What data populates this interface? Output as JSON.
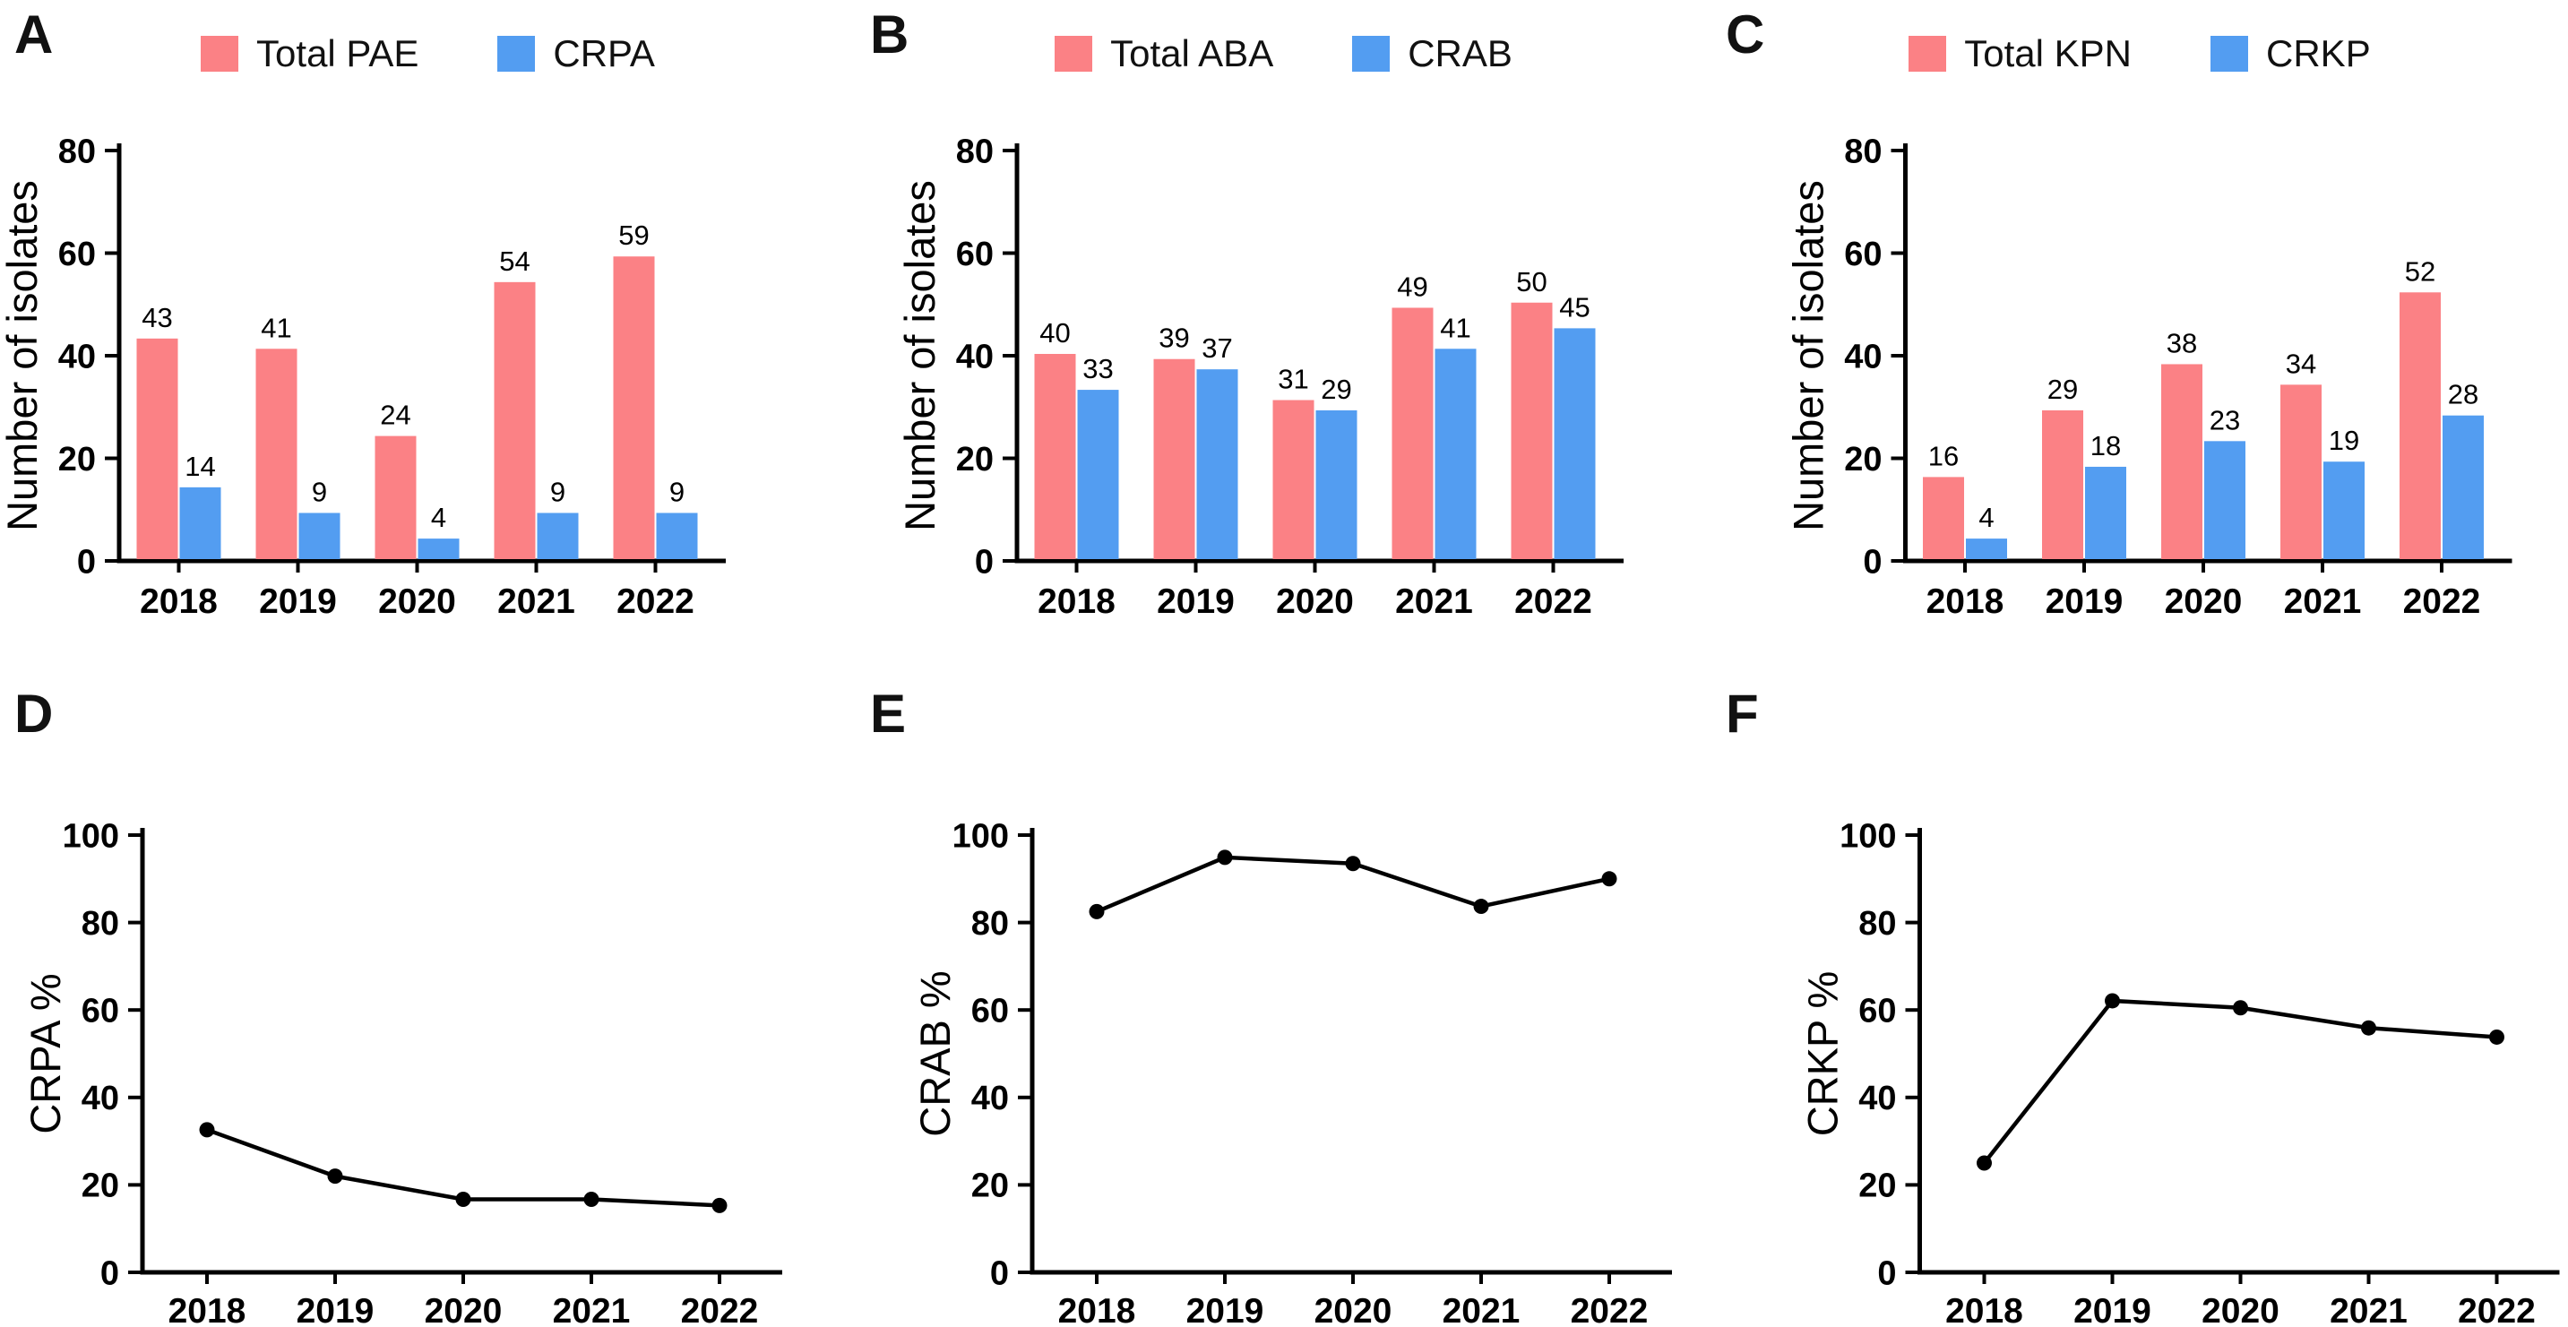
{
  "figure": {
    "background": "#ffffff",
    "axis_color": "#000000",
    "series_colors": {
      "total": "#FB8185",
      "resistant": "#539DF1",
      "line": "#000000"
    },
    "years": [
      "2018",
      "2019",
      "2020",
      "2021",
      "2022"
    ]
  },
  "chart_data": [
    {
      "panel": "A",
      "type": "bar",
      "categories": [
        "2018",
        "2019",
        "2020",
        "2021",
        "2022"
      ],
      "series": [
        {
          "name": "Total PAE",
          "color": "#FB8185",
          "values": [
            43,
            41,
            24,
            54,
            59
          ]
        },
        {
          "name": "CRPA",
          "color": "#539DF1",
          "values": [
            14,
            9,
            4,
            9,
            9
          ]
        }
      ],
      "ylabel": "Number of isolates",
      "xlabel": "",
      "ylim": [
        0,
        80
      ],
      "yticks": [
        0,
        20,
        40,
        60,
        80
      ],
      "legend_position": "top",
      "grid": "off",
      "bar_value_labels": true
    },
    {
      "panel": "B",
      "type": "bar",
      "categories": [
        "2018",
        "2019",
        "2020",
        "2021",
        "2022"
      ],
      "series": [
        {
          "name": "Total ABA",
          "color": "#FB8185",
          "values": [
            40,
            39,
            31,
            49,
            50
          ]
        },
        {
          "name": "CRAB",
          "color": "#539DF1",
          "values": [
            33,
            37,
            29,
            41,
            45
          ]
        }
      ],
      "ylabel": "Number of isolates",
      "xlabel": "",
      "ylim": [
        0,
        80
      ],
      "yticks": [
        0,
        20,
        40,
        60,
        80
      ],
      "legend_position": "top",
      "grid": "off",
      "bar_value_labels": true
    },
    {
      "panel": "C",
      "type": "bar",
      "categories": [
        "2018",
        "2019",
        "2020",
        "2021",
        "2022"
      ],
      "series": [
        {
          "name": "Total KPN",
          "color": "#FB8185",
          "values": [
            16,
            29,
            38,
            34,
            52
          ]
        },
        {
          "name": "CRKP",
          "color": "#539DF1",
          "values": [
            4,
            18,
            23,
            19,
            28
          ]
        }
      ],
      "ylabel": "Number of isolates",
      "xlabel": "",
      "ylim": [
        0,
        80
      ],
      "yticks": [
        0,
        20,
        40,
        60,
        80
      ],
      "legend_position": "top",
      "grid": "off",
      "bar_value_labels": true
    },
    {
      "panel": "D",
      "type": "line",
      "categories": [
        "2018",
        "2019",
        "2020",
        "2021",
        "2022"
      ],
      "series": [
        {
          "name": "CRPA %",
          "color": "#000000",
          "marker": "circle",
          "values": [
            32.6,
            22.0,
            16.7,
            16.7,
            15.3
          ]
        }
      ],
      "ylabel": "CRPA %",
      "xlabel": "",
      "ylim": [
        0,
        100
      ],
      "yticks": [
        0,
        20,
        40,
        60,
        80,
        100
      ],
      "legend_position": "none",
      "grid": "off"
    },
    {
      "panel": "E",
      "type": "line",
      "categories": [
        "2018",
        "2019",
        "2020",
        "2021",
        "2022"
      ],
      "series": [
        {
          "name": "CRAB %",
          "color": "#000000",
          "marker": "circle",
          "values": [
            82.5,
            94.9,
            93.5,
            83.7,
            90.0
          ]
        }
      ],
      "ylabel": "CRAB %",
      "xlabel": "",
      "ylim": [
        0,
        100
      ],
      "yticks": [
        0,
        20,
        40,
        60,
        80,
        100
      ],
      "legend_position": "none",
      "grid": "off"
    },
    {
      "panel": "F",
      "type": "line",
      "categories": [
        "2018",
        "2019",
        "2020",
        "2021",
        "2022"
      ],
      "series": [
        {
          "name": "CRKP %",
          "color": "#000000",
          "marker": "circle",
          "values": [
            25.0,
            62.1,
            60.5,
            55.9,
            53.8
          ]
        }
      ],
      "ylabel": "CRKP %",
      "xlabel": "",
      "ylim": [
        0,
        100
      ],
      "yticks": [
        0,
        20,
        40,
        60,
        80,
        100
      ],
      "legend_position": "none",
      "grid": "off"
    }
  ]
}
